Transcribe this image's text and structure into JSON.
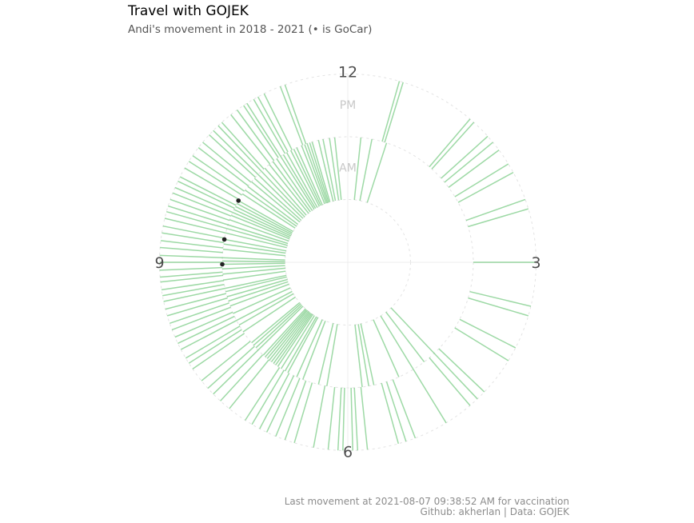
{
  "title": "Travel with GOJEK",
  "subtitle": "Andi's movement in 2018 - 2021 (• is GoCar)",
  "caption_line1": "Last movement at 2021-08-07 09:38:52 AM for vaccination",
  "caption_line2": "Github: akherlan | Data: GOJEK",
  "chart_data": {
    "type": "radial-clock",
    "title": "Travel with GOJEK",
    "subtitle": "Andi's movement in 2018 - 2021 (• is GoCar)",
    "hour_labels": [
      "12",
      "3",
      "6",
      "9"
    ],
    "ring_labels": {
      "am": "AM",
      "pm": "PM"
    },
    "rings": {
      "center": 0,
      "am_inner": 1,
      "am_outer": 2,
      "pm_outer": 3
    },
    "line_color": "#3cb44b",
    "gocar_color": "#222222",
    "am_trips": [
      0.2,
      0.37,
      0.6,
      4.55,
      4.75,
      4.95,
      5.2,
      5.6,
      5.68,
      5.78,
      6.32,
      6.45,
      6.7,
      6.8,
      6.95,
      7.0,
      7.07,
      7.13,
      7.17,
      7.21,
      7.25,
      7.29,
      7.33,
      7.37,
      7.41,
      7.52,
      7.57,
      7.62,
      7.67,
      7.88,
      8.0,
      8.08,
      8.2,
      8.32,
      8.4,
      8.47,
      8.55,
      8.6,
      8.73,
      8.82,
      8.9,
      8.97,
      9.02,
      9.07,
      9.2,
      9.28,
      9.35,
      9.45,
      9.52,
      9.58,
      9.66,
      9.73,
      9.78,
      9.83,
      9.88,
      9.93,
      9.98,
      10.1,
      10.17,
      10.24,
      10.33,
      10.4,
      10.48,
      10.55,
      10.62,
      10.71,
      10.78,
      10.85,
      10.92,
      10.97,
      11.03,
      11.1,
      11.15,
      11.2,
      11.28,
      11.33,
      11.37,
      11.41,
      11.45,
      11.55,
      11.62,
      11.72,
      11.8
    ],
    "pm_trips": [
      0.53,
      0.57,
      1.35,
      1.4,
      1.6,
      1.68,
      1.78,
      1.95,
      2.05,
      2.35,
      2.45,
      3.0,
      3.45,
      3.55,
      3.9,
      4.05,
      4.45,
      4.55,
      4.65,
      4.95,
      5.3,
      5.4,
      5.48,
      5.8,
      5.9,
      5.95,
      6.05,
      6.1,
      6.2,
      6.35,
      6.55,
      6.65,
      6.75,
      6.85,
      6.93,
      7.02,
      7.1,
      7.3,
      7.42,
      7.52,
      7.6,
      7.7,
      7.85,
      7.92,
      7.98,
      8.08,
      8.15,
      8.22,
      8.3,
      8.37,
      8.45,
      8.52,
      8.6,
      8.66,
      8.72,
      8.8,
      8.85,
      8.92,
      9.0,
      9.07,
      9.15,
      9.22,
      9.3,
      9.37,
      9.45,
      9.52,
      9.58,
      9.65,
      9.72,
      9.78,
      9.85,
      9.9,
      10.0,
      10.08,
      10.15,
      10.25,
      10.32,
      10.42,
      10.48,
      10.55,
      10.6,
      10.72,
      10.8,
      10.88,
      10.92,
      11.0,
      11.05,
      11.12,
      11.3,
      11.35
    ],
    "gocar_trips": [
      {
        "period": "AM",
        "hour": 8.97
      },
      {
        "period": "AM",
        "hour": 9.35
      },
      {
        "period": "AM",
        "hour": 9.98
      }
    ]
  }
}
